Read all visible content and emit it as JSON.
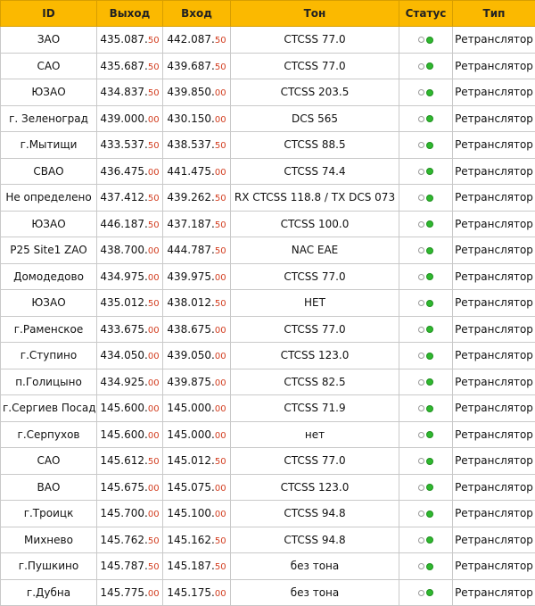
{
  "header": {
    "id": "ID",
    "out": "Выход",
    "in": "Вход",
    "tone": "Тон",
    "status": "Статус",
    "type": "Тип"
  },
  "status_colors": {
    "on": "#2fb82f",
    "off": "#ffffff",
    "header_bg": "#fbb900",
    "decimal": "#d23c1e"
  },
  "rows": [
    {
      "id": "ЗАО",
      "out_main": "435.087.",
      "out_dec": "50",
      "in_main": "442.087.",
      "in_dec": "50",
      "tone": "CTCSS 77.0",
      "status": "on",
      "type": "Ретранслятор"
    },
    {
      "id": "САО",
      "out_main": "435.687.",
      "out_dec": "50",
      "in_main": "439.687.",
      "in_dec": "50",
      "tone": "CTCSS 77.0",
      "status": "on",
      "type": "Ретранслятор"
    },
    {
      "id": "ЮЗАО",
      "out_main": "434.837.",
      "out_dec": "50",
      "in_main": "439.850.",
      "in_dec": "00",
      "tone": "CTCSS 203.5",
      "status": "on",
      "type": "Ретранслятор"
    },
    {
      "id": "г. Зеленоград",
      "out_main": "439.000.",
      "out_dec": "00",
      "in_main": "430.150.",
      "in_dec": "00",
      "tone": "DCS 565",
      "status": "on",
      "type": "Ретранслятор"
    },
    {
      "id": "г.Мытищи",
      "out_main": "433.537.",
      "out_dec": "50",
      "in_main": "438.537.",
      "in_dec": "50",
      "tone": "CTCSS 88.5",
      "status": "on",
      "type": "Ретранслятор"
    },
    {
      "id": "СВАО",
      "out_main": "436.475.",
      "out_dec": "00",
      "in_main": "441.475.",
      "in_dec": "00",
      "tone": "CTCSS 74.4",
      "status": "on",
      "type": "Ретранслятор"
    },
    {
      "id": "Не определено",
      "out_main": "437.412.",
      "out_dec": "50",
      "in_main": "439.262.",
      "in_dec": "50",
      "tone": "RX CTCSS 118.8 / TX DCS 073",
      "status": "on",
      "type": "Ретранслятор"
    },
    {
      "id": "ЮЗАО",
      "out_main": "446.187.",
      "out_dec": "50",
      "in_main": "437.187.",
      "in_dec": "50",
      "tone": "CTCSS 100.0",
      "status": "on",
      "type": "Ретранслятор"
    },
    {
      "id": "P25 Site1 ZAO",
      "out_main": "438.700.",
      "out_dec": "00",
      "in_main": "444.787.",
      "in_dec": "50",
      "tone": "NAC EAE",
      "status": "on",
      "type": "Ретранслятор"
    },
    {
      "id": "Домодедово",
      "out_main": "434.975.",
      "out_dec": "00",
      "in_main": "439.975.",
      "in_dec": "00",
      "tone": "CTCSS 77.0",
      "status": "on",
      "type": "Ретранслятор"
    },
    {
      "id": "ЮЗАО",
      "out_main": "435.012.",
      "out_dec": "50",
      "in_main": "438.012.",
      "in_dec": "50",
      "tone": "НЕТ",
      "status": "on",
      "type": "Ретранслятор"
    },
    {
      "id": "г.Раменское",
      "out_main": "433.675.",
      "out_dec": "00",
      "in_main": "438.675.",
      "in_dec": "00",
      "tone": "CTCSS 77.0",
      "status": "on",
      "type": "Ретранслятор"
    },
    {
      "id": "г.Ступино",
      "out_main": "434.050.",
      "out_dec": "00",
      "in_main": "439.050.",
      "in_dec": "00",
      "tone": "CTCSS 123.0",
      "status": "on",
      "type": "Ретранслятор"
    },
    {
      "id": "п.Голицыно",
      "out_main": "434.925.",
      "out_dec": "00",
      "in_main": "439.875.",
      "in_dec": "00",
      "tone": "CTCSS 82.5",
      "status": "on",
      "type": "Ретранслятор"
    },
    {
      "id": "г.Сергиев Посад",
      "out_main": "145.600.",
      "out_dec": "00",
      "in_main": "145.000.",
      "in_dec": "00",
      "tone": "CTCSS 71.9",
      "status": "on",
      "type": "Ретранслятор"
    },
    {
      "id": "г.Серпухов",
      "out_main": "145.600.",
      "out_dec": "00",
      "in_main": "145.000.",
      "in_dec": "00",
      "tone": "нет",
      "status": "on",
      "type": "Ретранслятор"
    },
    {
      "id": "САО",
      "out_main": "145.612.",
      "out_dec": "50",
      "in_main": "145.012.",
      "in_dec": "50",
      "tone": "CTCSS 77.0",
      "status": "on",
      "type": "Ретранслятор"
    },
    {
      "id": "ВАО",
      "out_main": "145.675.",
      "out_dec": "00",
      "in_main": "145.075.",
      "in_dec": "00",
      "tone": "CTCSS 123.0",
      "status": "on",
      "type": "Ретранслятор"
    },
    {
      "id": "г.Троицк",
      "out_main": "145.700.",
      "out_dec": "00",
      "in_main": "145.100.",
      "in_dec": "00",
      "tone": "CTCSS 94.8",
      "status": "on",
      "type": "Ретранслятор"
    },
    {
      "id": "Михнево",
      "out_main": "145.762.",
      "out_dec": "50",
      "in_main": "145.162.",
      "in_dec": "50",
      "tone": "CTCSS 94.8",
      "status": "on",
      "type": "Ретранслятор"
    },
    {
      "id": "г.Пушкино",
      "out_main": "145.787.",
      "out_dec": "50",
      "in_main": "145.187.",
      "in_dec": "50",
      "tone": "без тона",
      "status": "on",
      "type": "Ретранслятор"
    },
    {
      "id": "г.Дубна",
      "out_main": "145.775.",
      "out_dec": "00",
      "in_main": "145.175.",
      "in_dec": "00",
      "tone": "без тона",
      "status": "on",
      "type": "Ретранслятор"
    }
  ]
}
